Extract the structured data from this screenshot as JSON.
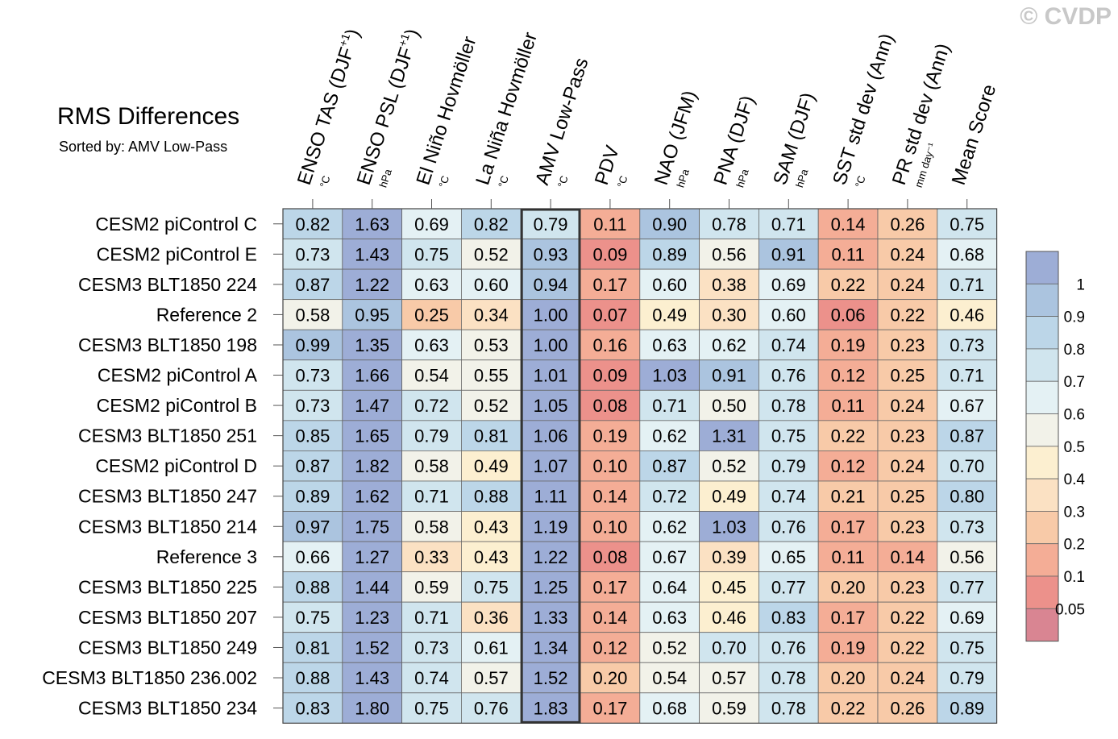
{
  "watermark": "© CVDP",
  "title": "RMS Differences",
  "subtitle": "Sorted by: AMV Low-Pass",
  "chart_data": {
    "type": "heatmap",
    "title": "RMS Differences",
    "subtitle": "Sorted by: AMV Low-Pass",
    "sorted_by": "AMV Low-Pass",
    "highlighted_column": 4,
    "columns": [
      {
        "label": "ENSO TAS (DJF",
        "sup": "+1",
        "close": ")",
        "unit": "°C"
      },
      {
        "label": "ENSO PSL (DJF",
        "sup": "+1",
        "close": ")",
        "unit": "hPa"
      },
      {
        "label": "El Niño Hovmöller",
        "sup": "",
        "close": "",
        "unit": "°C"
      },
      {
        "label": "La Niña Hovmöller",
        "sup": "",
        "close": "",
        "unit": "°C"
      },
      {
        "label": "AMV Low-Pass",
        "sup": "",
        "close": "",
        "unit": "°C"
      },
      {
        "label": "PDV",
        "sup": "",
        "close": "",
        "unit": "°C"
      },
      {
        "label": "NAO (JFM)",
        "sup": "",
        "close": "",
        "unit": "hPa"
      },
      {
        "label": "PNA (DJF)",
        "sup": "",
        "close": "",
        "unit": "hPa"
      },
      {
        "label": "SAM (DJF)",
        "sup": "",
        "close": "",
        "unit": "hPa"
      },
      {
        "label": "SST std dev (Ann)",
        "sup": "",
        "close": "",
        "unit": "°C"
      },
      {
        "label": "PR std dev (Ann)",
        "sup": "",
        "close": "",
        "unit": "mm day⁻¹"
      },
      {
        "label": "Mean Score",
        "sup": "",
        "close": "",
        "unit": ""
      }
    ],
    "rows": [
      "CESM2 piControl C",
      "CESM2 piControl E",
      "CESM3 BLT1850 224",
      "Reference 2",
      "CESM3 BLT1850 198",
      "CESM2 piControl A",
      "CESM2 piControl B",
      "CESM3 BLT1850 251",
      "CESM2 piControl D",
      "CESM3 BLT1850 247",
      "CESM3 BLT1850 214",
      "Reference 3",
      "CESM3 BLT1850 225",
      "CESM3 BLT1850 207",
      "CESM3 BLT1850 249",
      "CESM3 BLT1850 236.002",
      "CESM3 BLT1850 234"
    ],
    "values": [
      [
        "0.82",
        "1.63",
        "0.69",
        "0.82",
        "0.79",
        "0.11",
        "0.90",
        "0.78",
        "0.71",
        "0.14",
        "0.26",
        "0.75"
      ],
      [
        "0.73",
        "1.43",
        "0.75",
        "0.52",
        "0.93",
        "0.09",
        "0.89",
        "0.56",
        "0.91",
        "0.11",
        "0.24",
        "0.68"
      ],
      [
        "0.87",
        "1.22",
        "0.63",
        "0.60",
        "0.94",
        "0.17",
        "0.60",
        "0.38",
        "0.69",
        "0.22",
        "0.24",
        "0.71"
      ],
      [
        "0.58",
        "0.95",
        "0.25",
        "0.34",
        "1.00",
        "0.07",
        "0.49",
        "0.30",
        "0.60",
        "0.06",
        "0.22",
        "0.46"
      ],
      [
        "0.99",
        "1.35",
        "0.63",
        "0.53",
        "1.00",
        "0.16",
        "0.63",
        "0.62",
        "0.74",
        "0.19",
        "0.23",
        "0.73"
      ],
      [
        "0.73",
        "1.66",
        "0.54",
        "0.55",
        "1.01",
        "0.09",
        "1.03",
        "0.91",
        "0.76",
        "0.12",
        "0.25",
        "0.71"
      ],
      [
        "0.73",
        "1.47",
        "0.72",
        "0.52",
        "1.05",
        "0.08",
        "0.71",
        "0.50",
        "0.78",
        "0.11",
        "0.24",
        "0.67"
      ],
      [
        "0.85",
        "1.65",
        "0.79",
        "0.81",
        "1.06",
        "0.19",
        "0.62",
        "1.31",
        "0.75",
        "0.22",
        "0.23",
        "0.87"
      ],
      [
        "0.87",
        "1.82",
        "0.58",
        "0.49",
        "1.07",
        "0.10",
        "0.87",
        "0.52",
        "0.79",
        "0.12",
        "0.24",
        "0.70"
      ],
      [
        "0.89",
        "1.62",
        "0.71",
        "0.88",
        "1.11",
        "0.14",
        "0.72",
        "0.49",
        "0.74",
        "0.21",
        "0.25",
        "0.80"
      ],
      [
        "0.97",
        "1.75",
        "0.58",
        "0.43",
        "1.19",
        "0.10",
        "0.62",
        "1.03",
        "0.76",
        "0.17",
        "0.23",
        "0.73"
      ],
      [
        "0.66",
        "1.27",
        "0.33",
        "0.43",
        "1.22",
        "0.08",
        "0.67",
        "0.39",
        "0.65",
        "0.11",
        "0.14",
        "0.56"
      ],
      [
        "0.88",
        "1.44",
        "0.59",
        "0.75",
        "1.25",
        "0.17",
        "0.64",
        "0.45",
        "0.77",
        "0.20",
        "0.23",
        "0.77"
      ],
      [
        "0.75",
        "1.23",
        "0.71",
        "0.36",
        "1.33",
        "0.14",
        "0.63",
        "0.46",
        "0.83",
        "0.17",
        "0.22",
        "0.69"
      ],
      [
        "0.81",
        "1.52",
        "0.73",
        "0.61",
        "1.34",
        "0.12",
        "0.52",
        "0.70",
        "0.76",
        "0.19",
        "0.22",
        "0.75"
      ],
      [
        "0.88",
        "1.43",
        "0.74",
        "0.57",
        "1.52",
        "0.20",
        "0.54",
        "0.57",
        "0.78",
        "0.20",
        "0.24",
        "0.79"
      ],
      [
        "0.83",
        "1.80",
        "0.75",
        "0.76",
        "1.83",
        "0.17",
        "0.68",
        "0.59",
        "0.78",
        "0.22",
        "0.26",
        "0.89"
      ]
    ],
    "colorbar": {
      "labels": [
        "1",
        "0.9",
        "0.8",
        "0.7",
        "0.6",
        "0.5",
        "0.4",
        "0.3",
        "0.2",
        "0.1",
        "0.05"
      ],
      "bounds": [
        1.0,
        0.9,
        0.8,
        0.7,
        0.6,
        0.5,
        0.4,
        0.3,
        0.2,
        0.1,
        0.05
      ],
      "colors": [
        "#9dadd6",
        "#abc4df",
        "#bcd6e8",
        "#d0e5ee",
        "#e4f1f4",
        "#f2f2e9",
        "#fcefd0",
        "#fbe1c3",
        "#f8caa8",
        "#f4ad96",
        "#ec918b",
        "#d98592"
      ]
    }
  }
}
